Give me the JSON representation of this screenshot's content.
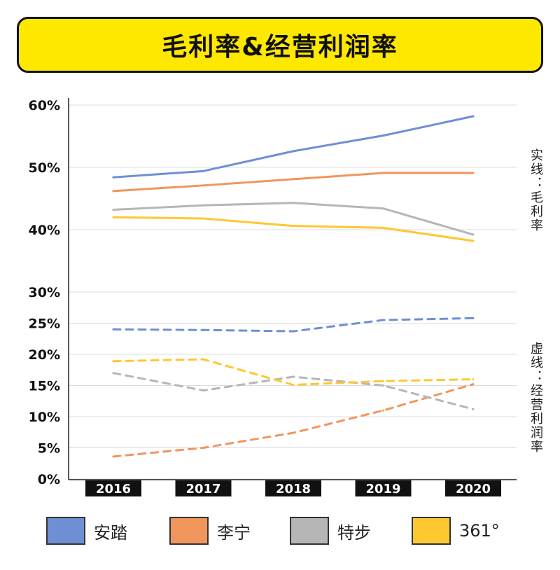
{
  "title": "毛利率&经营利润率",
  "side_notes": {
    "solid": "实线：毛利率",
    "dashed": "虚线：经营利润率"
  },
  "chart_data": {
    "type": "line",
    "x": [
      "2016",
      "2017",
      "2018",
      "2019",
      "2020"
    ],
    "ylim": [
      0,
      60
    ],
    "y_ticks": [
      0,
      5,
      10,
      15,
      20,
      25,
      30,
      40,
      50,
      60
    ],
    "y_tick_labels": [
      "0%",
      "5%",
      "10%",
      "15%",
      "20%",
      "25%",
      "30%",
      "40%",
      "50%",
      "60%"
    ],
    "grid": true,
    "legend_position": "bottom",
    "series": [
      {
        "name": "安踏",
        "metric": "gross",
        "style": "solid",
        "color": "#6f8fd4",
        "values": [
          48.4,
          49.4,
          52.6,
          55.1,
          58.2
        ]
      },
      {
        "name": "李宁",
        "metric": "gross",
        "style": "solid",
        "color": "#f0965c",
        "values": [
          46.2,
          47.1,
          48.1,
          49.1,
          49.1
        ]
      },
      {
        "name": "特步",
        "metric": "gross",
        "style": "solid",
        "color": "#b6b6b6",
        "values": [
          43.2,
          43.9,
          44.3,
          43.4,
          39.2
        ]
      },
      {
        "name": "361°",
        "metric": "gross",
        "style": "solid",
        "color": "#fdc830",
        "values": [
          42.0,
          41.8,
          40.6,
          40.3,
          38.2
        ]
      },
      {
        "name": "安踏",
        "metric": "operating",
        "style": "dashed",
        "color": "#6f8fd4",
        "values": [
          24.0,
          23.9,
          23.7,
          25.5,
          25.8
        ]
      },
      {
        "name": "李宁",
        "metric": "operating",
        "style": "dashed",
        "color": "#f0965c",
        "values": [
          3.6,
          5.0,
          7.4,
          11.0,
          15.2
        ]
      },
      {
        "name": "特步",
        "metric": "operating",
        "style": "dashed",
        "color": "#b6b6b6",
        "values": [
          17.0,
          14.2,
          16.4,
          15.0,
          11.2
        ]
      },
      {
        "name": "361°",
        "metric": "operating",
        "style": "dashed",
        "color": "#fdc830",
        "values": [
          18.9,
          19.2,
          15.1,
          15.7,
          16.0
        ]
      }
    ]
  },
  "legend": [
    {
      "label": "安踏",
      "color": "#6f8fd4"
    },
    {
      "label": "李宁",
      "color": "#f0965c"
    },
    {
      "label": "特步",
      "color": "#b6b6b6"
    },
    {
      "label": "361°",
      "color": "#fdc830"
    }
  ]
}
